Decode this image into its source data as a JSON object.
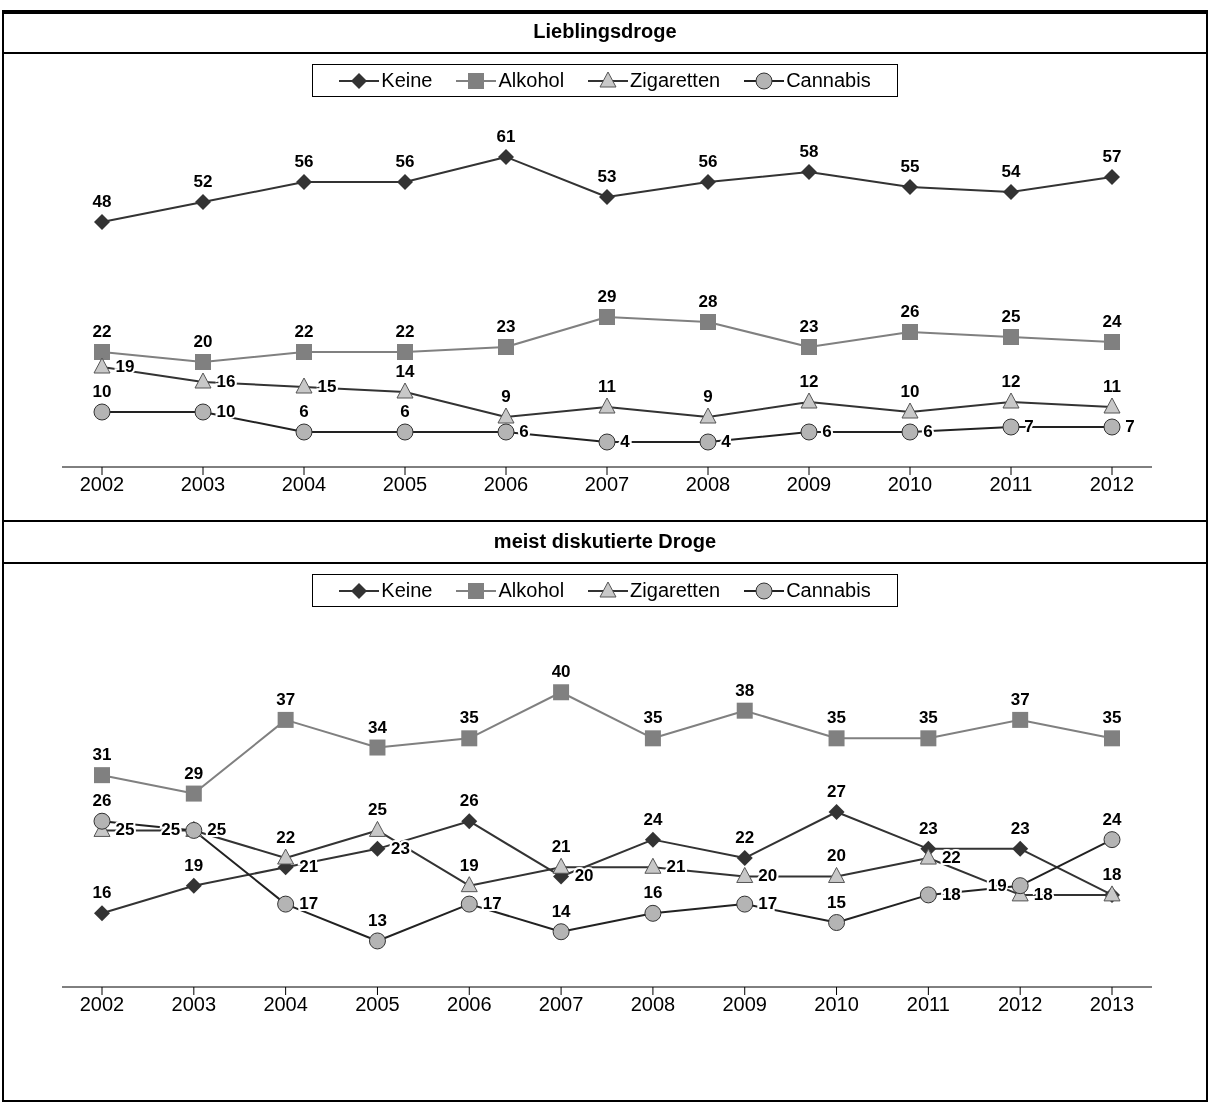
{
  "chart_data": [
    {
      "type": "line",
      "title": "Lieblingsdroge",
      "categories": [
        "2002",
        "2003",
        "2004",
        "2005",
        "2006",
        "2007",
        "2008",
        "2009",
        "2010",
        "2011",
        "2012"
      ],
      "legend": "top",
      "data_labels": true,
      "grid": false,
      "series": [
        {
          "name": "Keine",
          "color": "#333333",
          "marker": "diamond",
          "values": [
            48,
            52,
            56,
            56,
            61,
            53,
            56,
            58,
            55,
            54,
            57
          ]
        },
        {
          "name": "Alkohol",
          "color": "#808080",
          "marker": "square",
          "values": [
            22,
            20,
            22,
            22,
            23,
            29,
            28,
            23,
            26,
            25,
            24
          ]
        },
        {
          "name": "Zigaretten",
          "color": "#333333",
          "marker": "triangle",
          "values": [
            19,
            16,
            15,
            14,
            9,
            11,
            9,
            12,
            10,
            12,
            11
          ]
        },
        {
          "name": "Cannabis",
          "color": "#222222",
          "marker": "circle",
          "values": [
            10,
            10,
            6,
            6,
            6,
            4,
            4,
            6,
            6,
            7,
            7
          ]
        }
      ]
    },
    {
      "type": "line",
      "title": "meist diskutierte Droge",
      "categories": [
        "2002",
        "2003",
        "2004",
        "2005",
        "2006",
        "2007",
        "2008",
        "2009",
        "2010",
        "2011",
        "2012",
        "2013"
      ],
      "legend": "top",
      "data_labels": true,
      "grid": false,
      "series": [
        {
          "name": "Keine",
          "color": "#333333",
          "marker": "diamond",
          "values": [
            16,
            19,
            21,
            23,
            26,
            20,
            24,
            22,
            27,
            23,
            23,
            18
          ],
          "value_labels": [
            "16",
            "19",
            "21",
            "23",
            "26",
            "20",
            "24",
            "22",
            "27",
            "23",
            "23",
            null
          ]
        },
        {
          "name": "Alkohol",
          "color": "#808080",
          "marker": "square",
          "values": [
            31,
            29,
            37,
            34,
            35,
            40,
            35,
            38,
            35,
            35,
            37,
            35
          ]
        },
        {
          "name": "Zigaretten",
          "color": "#333333",
          "marker": "triangle",
          "values": [
            25,
            25,
            22,
            25,
            19,
            21,
            21,
            20,
            20,
            22,
            18,
            18
          ]
        },
        {
          "name": "Cannabis",
          "color": "#222222",
          "marker": "circle",
          "values": [
            26,
            25,
            17,
            13,
            17,
            14,
            16,
            17,
            15,
            18,
            19,
            24
          ]
        }
      ]
    }
  ]
}
